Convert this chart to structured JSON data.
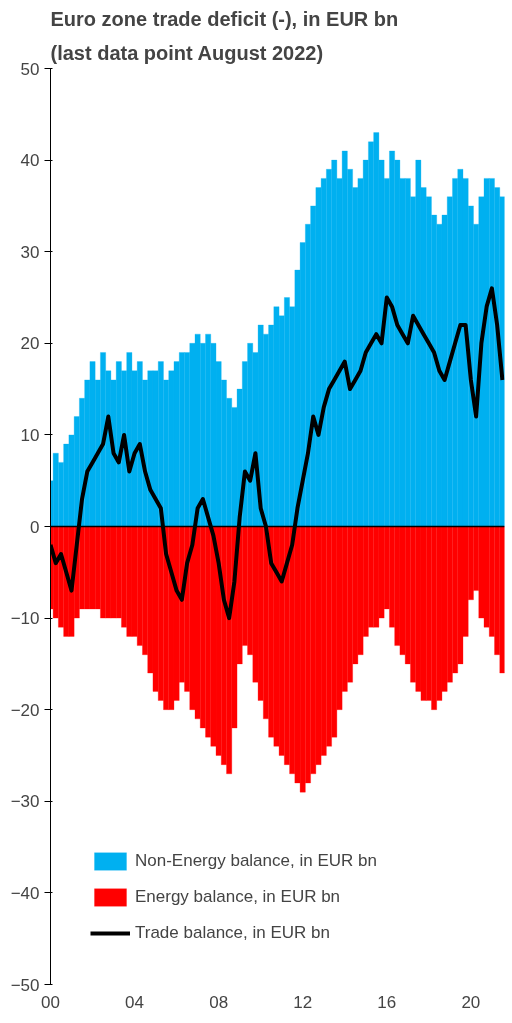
{
  "chart_data": {
    "type": "bar",
    "title": "Euro zone trade deficit (-), in EUR bn",
    "subtitle": "(last data point August 2022)",
    "x": [
      2000,
      2000.25,
      2000.5,
      2000.75,
      2001,
      2001.25,
      2001.5,
      2001.75,
      2002,
      2002.25,
      2002.5,
      2002.75,
      2003,
      2003.25,
      2003.5,
      2003.75,
      2004,
      2004.25,
      2004.5,
      2004.75,
      2005,
      2005.25,
      2005.5,
      2005.75,
      2006,
      2006.25,
      2006.5,
      2006.75,
      2007,
      2007.25,
      2007.5,
      2007.75,
      2008,
      2008.25,
      2008.5,
      2008.75,
      2009,
      2009.25,
      2009.5,
      2009.75,
      2010,
      2010.25,
      2010.5,
      2010.75,
      2011,
      2011.25,
      2011.5,
      2011.75,
      2012,
      2012.25,
      2012.5,
      2012.75,
      2013,
      2013.25,
      2013.5,
      2013.75,
      2014,
      2014.25,
      2014.5,
      2014.75,
      2015,
      2015.25,
      2015.5,
      2015.75,
      2016,
      2016.25,
      2016.5,
      2016.75,
      2017,
      2017.25,
      2017.5,
      2017.75,
      2018,
      2018.25,
      2018.5,
      2018.75,
      2019,
      2019.25,
      2019.5,
      2019.75,
      2020,
      2020.25,
      2020.5,
      2020.75,
      2021,
      2021.25,
      2021.5
    ],
    "stacked": true,
    "series": [
      {
        "name": "Non-Energy balance, in EUR bn",
        "color": "#00b0f0",
        "values": [
          5,
          8,
          7,
          9,
          10,
          12,
          14,
          16,
          18,
          16,
          19,
          17,
          16,
          18,
          17,
          19,
          17,
          18,
          16,
          17,
          17,
          18,
          16,
          17,
          18,
          19,
          19,
          20,
          21,
          20,
          21,
          20,
          18,
          16,
          14,
          13,
          15,
          18,
          20,
          19,
          22,
          21,
          22,
          24,
          23,
          25,
          24,
          28,
          31,
          33,
          35,
          37,
          38,
          39,
          40,
          38,
          41,
          39,
          37,
          38,
          40,
          42,
          43,
          40,
          38,
          41,
          40,
          38,
          38,
          36,
          40,
          37,
          36,
          34,
          33,
          34,
          36,
          38,
          39,
          38,
          35,
          33,
          36,
          38,
          38,
          37,
          36
        ]
      },
      {
        "name": "Energy balance, in EUR bn",
        "color": "#ff0000",
        "values": [
          -9,
          -10,
          -11,
          -12,
          -12,
          -10,
          -9,
          -9,
          -9,
          -9,
          -10,
          -10,
          -10,
          -10,
          -11,
          -12,
          -12,
          -13,
          -14,
          -16,
          -18,
          -19,
          -20,
          -20,
          -19,
          -17,
          -18,
          -20,
          -21,
          -22,
          -23,
          -24,
          -25,
          -26,
          -27,
          -22,
          -15,
          -13,
          -14,
          -17,
          -19,
          -21,
          -23,
          -24,
          -25,
          -26,
          -27,
          -28,
          -29,
          -28,
          -27,
          -26,
          -25,
          -24,
          -23,
          -20,
          -18,
          -17,
          -15,
          -14,
          -12,
          -11,
          -11,
          -10,
          -9,
          -11,
          -13,
          -14,
          -15,
          -17,
          -18,
          -19,
          -19,
          -20,
          -19,
          -18,
          -17,
          -16,
          -15,
          -12,
          -8,
          -7,
          -10,
          -11,
          -12,
          -14,
          -16
        ]
      },
      {
        "name": "Trade balance, in EUR bn",
        "color": "#000000",
        "type": "line",
        "values": [
          -2,
          -4,
          -3,
          -5,
          -7,
          -2,
          3,
          6,
          7,
          8,
          9,
          12,
          8,
          7,
          10,
          6,
          8,
          9,
          6,
          4,
          3,
          2,
          -3,
          -5,
          -7,
          -8,
          -4,
          -2,
          2,
          3,
          1,
          -1,
          -4,
          -8,
          -10,
          -6,
          1,
          6,
          5,
          8,
          2,
          0,
          -4,
          -5,
          -6,
          -4,
          -2,
          2,
          5,
          8,
          12,
          10,
          13,
          15,
          16,
          17,
          18,
          15,
          16,
          17,
          19,
          20,
          21,
          20,
          25,
          24,
          22,
          21,
          20,
          23,
          22,
          21,
          20,
          19,
          17,
          16,
          18,
          20,
          22,
          22,
          16,
          12,
          20,
          24,
          26,
          22,
          16
        ]
      }
    ],
    "xlim": [
      2000,
      2021.6
    ],
    "xticks": [
      {
        "value": 2000,
        "label": "00"
      },
      {
        "value": 2004,
        "label": "04"
      },
      {
        "value": 2008,
        "label": "08"
      },
      {
        "value": 2012,
        "label": "12"
      },
      {
        "value": 2016,
        "label": "16"
      },
      {
        "value": 2020,
        "label": "20"
      }
    ],
    "ylim": [
      -50,
      50
    ],
    "yticks": [
      -50,
      -40,
      -30,
      -20,
      -10,
      0,
      10,
      20,
      30,
      40,
      50
    ],
    "ref_lines": [
      {
        "axis": "y",
        "value": 0,
        "color": "#000000"
      }
    ],
    "grid": false,
    "legend": "bottom left"
  }
}
